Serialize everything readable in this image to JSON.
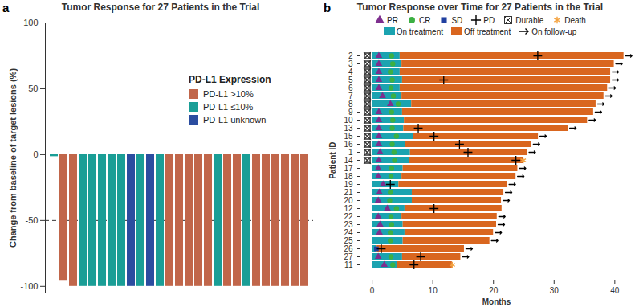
{
  "chart_data": [
    {
      "type": "bar",
      "panel": "a",
      "title": "Tumor Response for 27 Patients in the Trial",
      "y_label": "Change from baseline of target lesions (%)",
      "categories": [
        null,
        null,
        null,
        null,
        null,
        null,
        null,
        null,
        null,
        null,
        null,
        null,
        null,
        null,
        null,
        null,
        null,
        null,
        null,
        null,
        null,
        null,
        null,
        null,
        null,
        null,
        null
      ],
      "series": [
        {
          "name": "PD-L1 >10%",
          "color": "#c1664a",
          "values": [
            null,
            -96,
            -100,
            null,
            null,
            null,
            null,
            null,
            null,
            null,
            null,
            null,
            -100,
            -100,
            -100,
            -100,
            -100,
            null,
            -100,
            -100,
            null,
            -100,
            -100,
            -100,
            -100,
            -100,
            -100
          ]
        },
        {
          "name": "PD-L1 ≤10%",
          "color": "#1a9e96",
          "values": [
            -1.5,
            null,
            null,
            -100,
            -100,
            -100,
            -100,
            -100,
            null,
            -100,
            null,
            -100,
            null,
            null,
            null,
            null,
            null,
            -100,
            null,
            null,
            -100,
            null,
            null,
            null,
            null,
            null,
            null
          ]
        },
        {
          "name": "PD-L1 unknown",
          "color": "#2b4da0",
          "values": [
            null,
            null,
            null,
            null,
            null,
            null,
            null,
            null,
            -100,
            null,
            -100,
            null,
            null,
            null,
            null,
            null,
            null,
            null,
            null,
            null,
            null,
            null,
            null,
            null,
            null,
            null,
            null
          ]
        }
      ],
      "legend_title": "PD-L1 Expression",
      "legend": "right",
      "ylim": [
        -105,
        100
      ],
      "yticks": [
        -100,
        -50,
        0,
        50,
        100
      ],
      "reference_lines": [
        -50
      ],
      "tick_labels": "y"
    },
    {
      "type": "swimmer",
      "panel": "b",
      "title": "Tumor Response over Time for 27 Patients in the Trial",
      "x_label": "Months",
      "y_label": "Patient ID",
      "categories": [
        "2",
        "3",
        "4",
        "5",
        "6",
        "7",
        "8",
        "9",
        "10",
        "13",
        "15",
        "16",
        "1",
        "14",
        "17",
        "18",
        "19",
        "21",
        "20",
        "12",
        "22",
        "23",
        "24",
        "25",
        "26",
        "27",
        "11"
      ],
      "orientation": "horizontal",
      "stacked": true,
      "series": [
        {
          "name": "On treatment",
          "color": "#1ba3b0",
          "values": [
            4.6,
            4.9,
            4.6,
            5.0,
            4.6,
            4.9,
            6.5,
            5.0,
            5.3,
            5.2,
            6.8,
            5.5,
            6.3,
            6.2,
            5.1,
            4.9,
            4.4,
            6.6,
            6.6,
            5.4,
            4.9,
            5.1,
            5.4,
            5.1,
            0.8,
            5.0,
            4.2
          ]
        },
        {
          "name": "Off treatment",
          "color": "#d9661f",
          "values": [
            36.9,
            35.0,
            34.7,
            34.3,
            34.2,
            33.3,
            30.4,
            31.5,
            30.2,
            27.1,
            20.6,
            20.8,
            19.3,
            18.7,
            18.9,
            18.8,
            17.9,
            15.1,
            14.7,
            16.0,
            15.7,
            15.4,
            14.6,
            14.3,
            14.4,
            9.6,
            9.0
          ]
        }
      ],
      "events": [
        {
          "name": "PR",
          "color": "#7e2f8e",
          "marker": "triangle",
          "values": [
            1.1,
            1.1,
            1.1,
            1.1,
            1.1,
            1.7,
            3.0,
            1.1,
            1.1,
            1.1,
            1.1,
            1.1,
            1.3,
            1.1,
            1.0,
            1.0,
            1.8,
            1.2,
            1.0,
            2.5,
            1.0,
            1.3,
            1.2,
            null,
            null,
            1.0,
            2.0
          ]
        },
        {
          "name": "CR",
          "color": "#3cb043",
          "marker": "circle",
          "values": [
            3.2,
            3.4,
            3.0,
            3.3,
            3.1,
            3.5,
            4.3,
            3.2,
            3.4,
            3.3,
            4.0,
            3.3,
            3.6,
            3.7,
            3.2,
            3.1,
            null,
            3.0,
            2.9,
            4.0,
            3.1,
            3.2,
            3.0,
            3.0,
            null,
            3.1,
            3.4
          ]
        },
        {
          "name": "SD",
          "color": "#2040a0",
          "marker": "square",
          "values": [
            null,
            null,
            null,
            null,
            null,
            null,
            null,
            null,
            null,
            null,
            null,
            null,
            null,
            null,
            null,
            null,
            null,
            null,
            null,
            null,
            null,
            null,
            null,
            null,
            0.7,
            null,
            null
          ]
        },
        {
          "name": "PD",
          "color": "#000000",
          "marker": "plus",
          "values": [
            27.3,
            null,
            null,
            11.8,
            null,
            null,
            null,
            null,
            null,
            7.6,
            10.2,
            14.4,
            15.8,
            23.7,
            null,
            null,
            3.0,
            null,
            null,
            10.2,
            null,
            null,
            null,
            null,
            1.5,
            8.0,
            6.9
          ]
        },
        {
          "name": "Durable",
          "color": "#333333",
          "marker": "crossed_square",
          "values": [
            true,
            true,
            true,
            true,
            true,
            true,
            true,
            true,
            true,
            true,
            true,
            true,
            true,
            true,
            false,
            false,
            false,
            false,
            false,
            false,
            false,
            false,
            false,
            false,
            false,
            false,
            false
          ]
        },
        {
          "name": "Death",
          "color": "#f4a340",
          "marker": "asterisk",
          "values": [
            null,
            null,
            null,
            null,
            null,
            null,
            null,
            null,
            null,
            null,
            null,
            null,
            null,
            24.9,
            null,
            null,
            null,
            null,
            null,
            null,
            null,
            null,
            null,
            null,
            null,
            null,
            13.2
          ]
        },
        {
          "name": "On follow-up",
          "color": "#000000",
          "marker": "arrow",
          "values": [
            true,
            true,
            true,
            true,
            true,
            true,
            true,
            true,
            true,
            true,
            true,
            true,
            true,
            false,
            true,
            true,
            true,
            true,
            true,
            false,
            true,
            true,
            true,
            true,
            true,
            true,
            false
          ]
        }
      ],
      "legend": "top",
      "xlim": [
        -2,
        43
      ],
      "xticks": [
        0,
        10,
        20,
        30,
        40
      ]
    }
  ]
}
